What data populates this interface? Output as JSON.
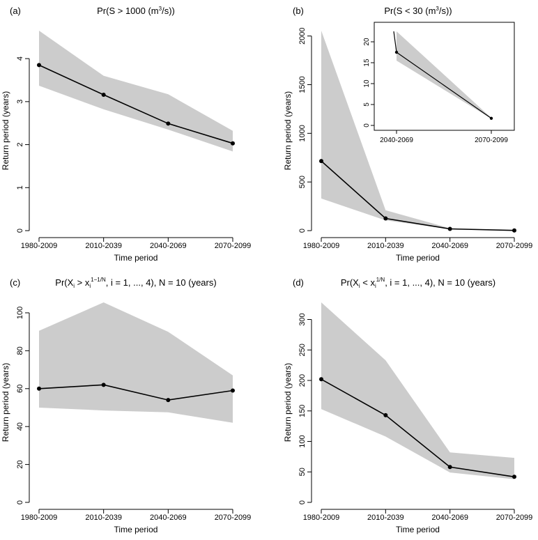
{
  "chart_data": [
    {
      "panel": "a",
      "tag": "(a)",
      "title": {
        "pre": "Pr(S > 1000 (m",
        "sup": "3",
        "post": "/s))"
      },
      "type": "line",
      "categories": [
        "1980-2009",
        "2010-2039",
        "2040-2069",
        "2070-2099"
      ],
      "values": [
        3.85,
        3.16,
        2.49,
        2.03
      ],
      "band_lower": [
        3.37,
        2.82,
        2.35,
        1.84
      ],
      "band_upper": [
        4.65,
        3.6,
        3.17,
        2.32
      ],
      "ylim": [
        0,
        4.65
      ],
      "yticks": [
        0,
        1,
        2,
        3,
        4
      ],
      "xlabel": "Time period",
      "ylabel": "Return period (years)"
    },
    {
      "panel": "b",
      "tag": "(b)",
      "title": {
        "pre": "Pr(S < 30 (m",
        "sup": "3",
        "post": "/s))"
      },
      "type": "line",
      "categories": [
        "1980-2009",
        "2010-2039",
        "2040-2069",
        "2070-2099"
      ],
      "values": [
        715,
        125,
        18,
        2
      ],
      "band_lower": [
        330,
        105,
        15,
        1
      ],
      "band_upper": [
        2055,
        210,
        24,
        2
      ],
      "ylim": [
        0,
        2055
      ],
      "yticks": [
        0,
        500,
        1000,
        1500,
        2000
      ],
      "xlabel": "Time period",
      "ylabel": "Return period (years)",
      "inset": {
        "categories": [
          "2040-2069",
          "2070-2099"
        ],
        "x": [
          0,
          1
        ],
        "values": [
          17.5,
          1.7
        ],
        "band_lower": [
          15.5,
          1.6
        ],
        "band_upper": [
          22.5,
          1.8
        ],
        "line_start_value": 22.5,
        "ylim": [
          0,
          23
        ],
        "yticks": [
          0,
          5,
          10,
          15,
          20
        ]
      }
    },
    {
      "panel": "c",
      "tag": "(c)",
      "title": {
        "pre": "Pr(X",
        "sub1": "i",
        "mid1": " > x",
        "sub2": "i",
        "sup": "1−1/N",
        "post": ", i = 1, ..., 4), N = 10 (years)"
      },
      "type": "line",
      "categories": [
        "1980-2009",
        "2010-2039",
        "2040-2069",
        "2070-2099"
      ],
      "values": [
        60,
        62,
        54,
        59
      ],
      "band_lower": [
        50,
        48.5,
        47.5,
        42
      ],
      "band_upper": [
        90.5,
        105.5,
        90,
        67
      ],
      "ylim": [
        0,
        105.5
      ],
      "yticks": [
        0,
        20,
        40,
        60,
        80,
        100
      ],
      "xlabel": "Time period",
      "ylabel": "Return period (years)"
    },
    {
      "panel": "d",
      "tag": "(d)",
      "title": {
        "pre": "Pr(X",
        "sub1": "i",
        "mid1": " < x",
        "sub2": "i",
        "sup": "1/N",
        "post": ", i = 1, ..., 4), N = 10 (years)"
      },
      "type": "line",
      "categories": [
        "1980-2009",
        "2010-2039",
        "2040-2069",
        "2070-2099"
      ],
      "values": [
        202,
        143,
        58,
        42
      ],
      "band_lower": [
        153,
        108,
        49,
        38
      ],
      "band_upper": [
        328,
        233,
        82,
        73
      ],
      "ylim": [
        0,
        328
      ],
      "yticks": [
        0,
        50,
        100,
        150,
        200,
        250,
        300
      ],
      "xlabel": "Time period",
      "ylabel": "Return period (years)"
    }
  ],
  "colors": {
    "band": "#cccccc",
    "line": "#000000",
    "axis": "#000000"
  }
}
